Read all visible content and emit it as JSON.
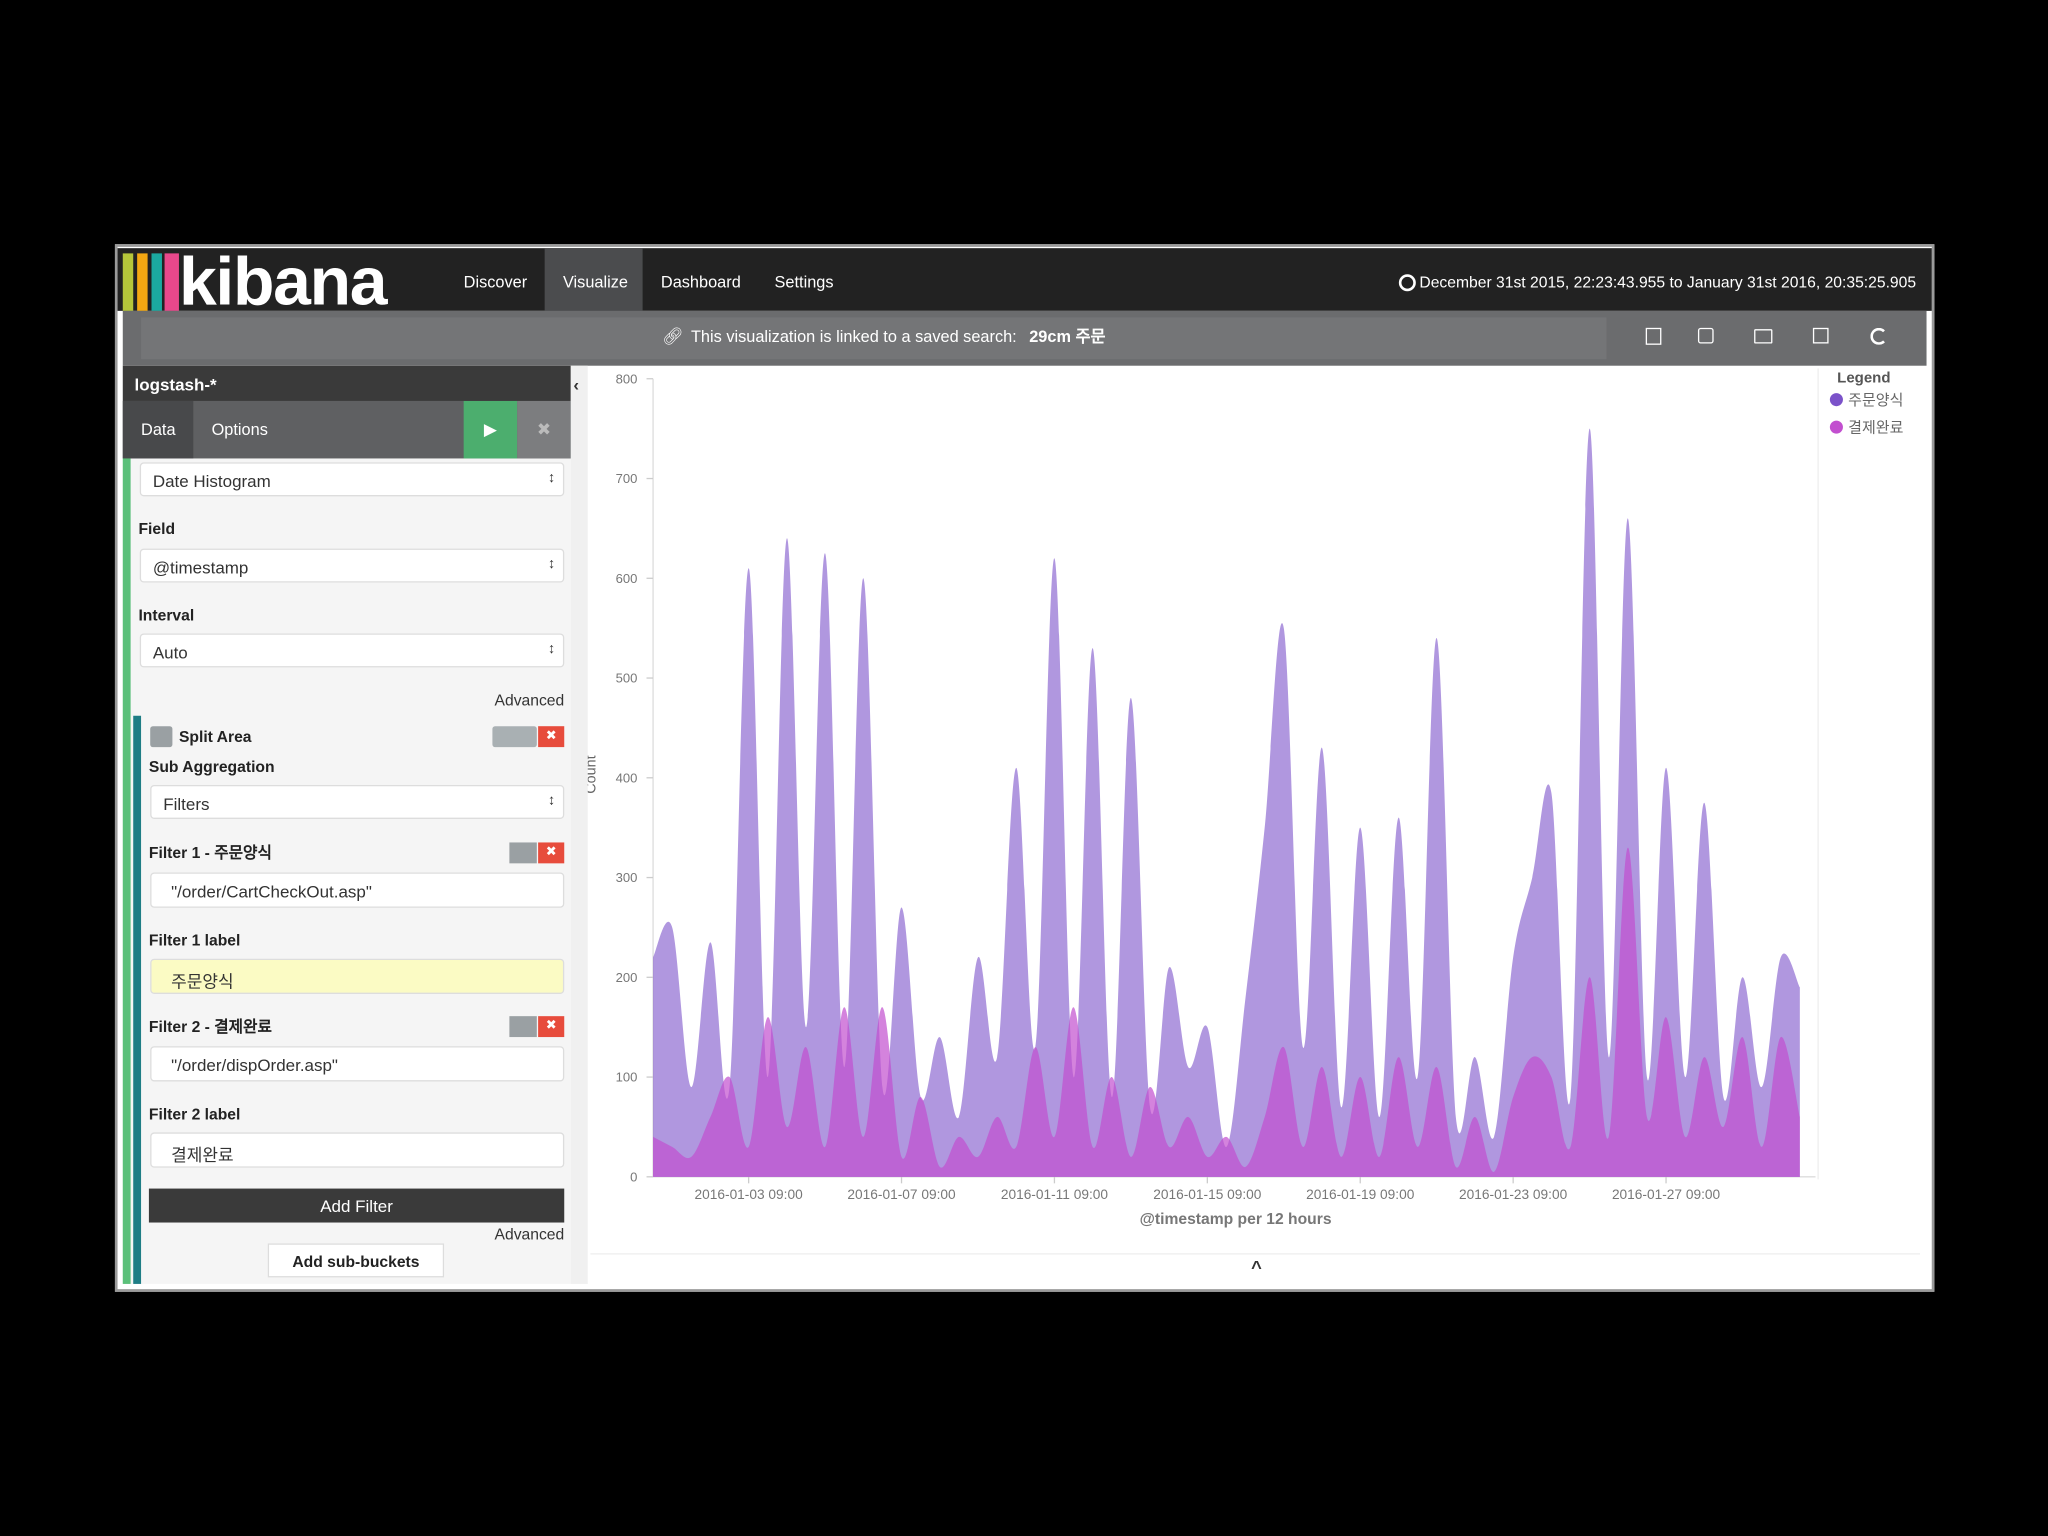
{
  "nav": {
    "brand": "kibana",
    "links": [
      "Discover",
      "Visualize",
      "Dashboard",
      "Settings"
    ],
    "time_range": "December 31st 2015, 22:23:43.955 to January 31st 2016, 20:35:25.905"
  },
  "banner": {
    "text": "This visualization is linked to a saved search:",
    "search": "29cm 주문"
  },
  "sidebar": {
    "index": "logstash-*",
    "tabs": [
      "Data",
      "Options"
    ],
    "aggregation": "Date Histogram",
    "field_label": "Field",
    "field": "@timestamp",
    "interval_label": "Interval",
    "interval": "Auto",
    "advanced": "Advanced",
    "split": "Split Area",
    "sub_aggregation_label": "Sub Aggregation",
    "sub_aggregation": "Filters",
    "filters": [
      {
        "title": "Filter 1 - 주문양식",
        "query": "\"/order/CartCheckOut.asp\"",
        "label_title": "Filter 1 label",
        "label": "주문양식"
      },
      {
        "title": "Filter 2 - 결제완료",
        "query": "\"/order/dispOrder.asp\"",
        "label_title": "Filter 2 label",
        "label": "결제완료"
      }
    ],
    "add_filter": "Add Filter",
    "filters_advanced": "Advanced",
    "add_sub_buckets": "Add sub-buckets"
  },
  "chart_data": {
    "type": "area",
    "ylabel": "Count",
    "xlabel": "@timestamp per 12 hours",
    "legend_title": "Legend",
    "legend": "right",
    "grid": false,
    "ylim": [
      0,
      800
    ],
    "yticks": [
      0,
      100,
      200,
      300,
      400,
      500,
      600,
      700,
      800
    ],
    "categories": [
      null,
      null,
      null,
      null,
      null,
      "2016-01-03 09:00",
      null,
      null,
      null,
      null,
      null,
      null,
      null,
      "2016-01-07 09:00",
      null,
      null,
      null,
      null,
      null,
      null,
      null,
      "2016-01-11 09:00",
      null,
      null,
      null,
      null,
      null,
      null,
      null,
      "2016-01-15 09:00",
      null,
      null,
      null,
      null,
      null,
      null,
      null,
      "2016-01-19 09:00",
      null,
      null,
      null,
      null,
      null,
      null,
      null,
      "2016-01-23 09:00",
      null,
      null,
      null,
      null,
      null,
      null,
      null,
      "2016-01-27 09:00",
      null,
      null,
      null,
      null,
      null,
      null,
      null
    ],
    "series": [
      {
        "name": "주문양식",
        "color": "#7b52c9",
        "values": [
          220,
          250,
          90,
          235,
          90,
          610,
          100,
          640,
          150,
          625,
          110,
          600,
          90,
          270,
          80,
          140,
          60,
          220,
          120,
          410,
          130,
          620,
          100,
          530,
          80,
          480,
          70,
          210,
          110,
          150,
          30,
          180,
          350,
          550,
          130,
          430,
          70,
          350,
          60,
          360,
          100,
          540,
          60,
          120,
          40,
          220,
          300,
          385,
          80,
          750,
          120,
          660,
          100,
          410,
          100,
          375,
          80,
          200,
          90,
          220,
          190
        ]
      },
      {
        "name": "결제완료",
        "color": "#c24fcf",
        "values": [
          40,
          30,
          20,
          60,
          100,
          30,
          160,
          50,
          130,
          30,
          170,
          40,
          170,
          20,
          80,
          10,
          40,
          20,
          60,
          30,
          130,
          40,
          170,
          30,
          100,
          20,
          90,
          30,
          60,
          20,
          40,
          10,
          60,
          130,
          30,
          110,
          20,
          100,
          20,
          120,
          30,
          110,
          10,
          60,
          5,
          80,
          120,
          100,
          30,
          200,
          40,
          330,
          60,
          160,
          40,
          120,
          50,
          140,
          30,
          140,
          60
        ]
      }
    ]
  }
}
